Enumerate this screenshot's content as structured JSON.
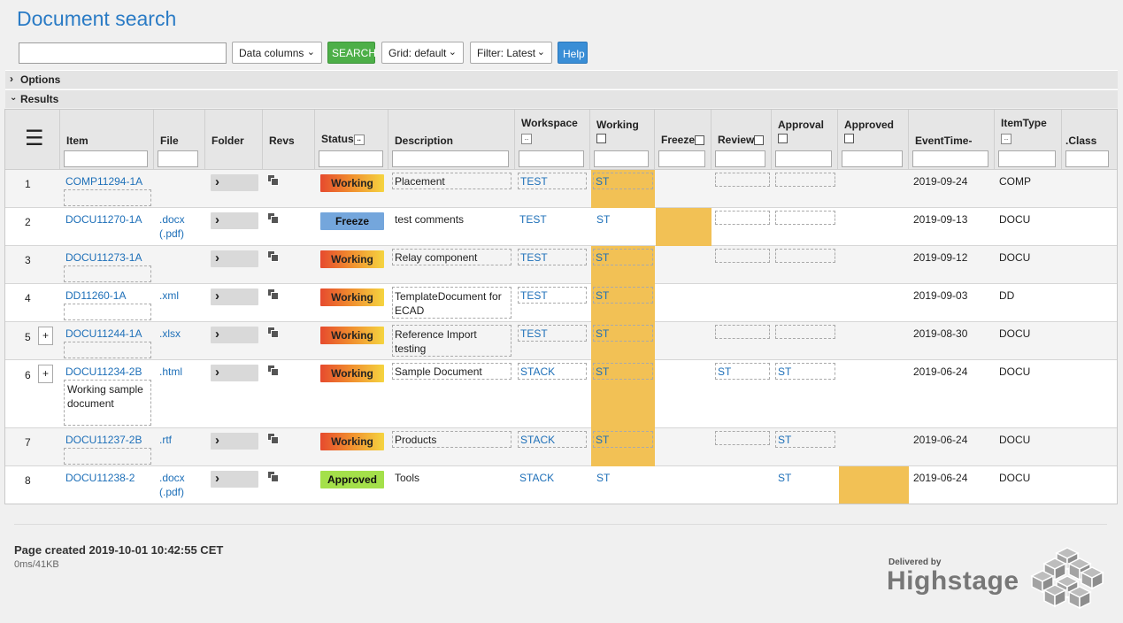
{
  "title": "Document search",
  "toolbar": {
    "search_value": "",
    "data_columns": "Data columns",
    "search_label": "SEARCH",
    "grid": "Grid: default",
    "filter": "Filter: Latest",
    "help": "Help"
  },
  "sections": {
    "options": "Options",
    "results": "Results"
  },
  "columns": {
    "item": "Item",
    "file": "File",
    "folder": "Folder",
    "revs": "Revs",
    "status": "Status",
    "description": "Description",
    "workspace": "Workspace",
    "working": "Working",
    "freeze": "Freeze",
    "review": "Review",
    "approval": "Approval",
    "approved": "Approved",
    "eventtime": "EventTime-",
    "itemtype": "ItemType",
    "class": ".Class"
  },
  "rows": [
    {
      "num": "1",
      "item": "COMP11294-1A",
      "file": "",
      "file2": "",
      "status": "Working",
      "description": "Placement",
      "workspace": "TEST",
      "working": "ST",
      "freeze": "",
      "review": "",
      "approval": "",
      "event": "2019-09-24",
      "itemtype": "COMP",
      "note": ""
    },
    {
      "num": "2",
      "item": "DOCU11270-1A",
      "file": ".docx",
      "file2": "(.pdf)",
      "status": "Freeze",
      "description": "test comments",
      "workspace": "TEST",
      "working": "ST",
      "freeze": "",
      "review": "",
      "approval": "",
      "event": "2019-09-13",
      "itemtype": "DOCU",
      "note": ""
    },
    {
      "num": "3",
      "item": "DOCU11273-1A",
      "file": "",
      "file2": "",
      "status": "Working",
      "description": "Relay component",
      "workspace": "TEST",
      "working": "ST",
      "freeze": "",
      "review": "",
      "approval": "",
      "event": "2019-09-12",
      "itemtype": "DOCU",
      "note": ""
    },
    {
      "num": "4",
      "item": "DD11260-1A",
      "file": ".xml",
      "file2": "",
      "status": "Working",
      "description": "TemplateDocument for ECAD",
      "workspace": "TEST",
      "working": "ST",
      "freeze": "",
      "review": "",
      "approval": "",
      "event": "2019-09-03",
      "itemtype": "DD",
      "note": ""
    },
    {
      "num": "5",
      "item": "DOCU11244-1A",
      "file": ".xlsx",
      "file2": "",
      "status": "Working",
      "description": "Reference Import testing",
      "workspace": "TEST",
      "working": "ST",
      "freeze": "",
      "review": "",
      "approval": "",
      "event": "2019-08-30",
      "itemtype": "DOCU",
      "note": ""
    },
    {
      "num": "6",
      "item": "DOCU11234-2B",
      "file": ".html",
      "file2": "",
      "status": "Working",
      "description": "Sample Document",
      "workspace": "STACK",
      "working": "ST",
      "freeze": "",
      "review": "ST",
      "approval": "ST",
      "event": "2019-06-24",
      "itemtype": "DOCU",
      "note": "Working sample document"
    },
    {
      "num": "7",
      "item": "DOCU11237-2B",
      "file": ".rtf",
      "file2": "",
      "status": "Working",
      "description": "Products",
      "workspace": "STACK",
      "working": "ST",
      "freeze": "",
      "review": "",
      "approval": "ST",
      "event": "2019-06-24",
      "itemtype": "DOCU",
      "note": ""
    },
    {
      "num": "8",
      "item": "DOCU11238-2",
      "file": ".docx",
      "file2": "(.pdf)",
      "status": "Approved",
      "description": "Tools",
      "workspace": "STACK",
      "working": "ST",
      "freeze": "",
      "review": "",
      "approval": "ST",
      "event": "2019-06-24",
      "itemtype": "DOCU",
      "note": ""
    }
  ],
  "footer": {
    "created": "Page created 2019-10-01 10:42:55 CET",
    "perf": "0ms/41KB",
    "delivered_by": "Delivered by",
    "brand": "Highstage"
  },
  "colors": {
    "title": "#2a7bc5",
    "highlight": "#f2c155",
    "search": "#4daf48",
    "help": "#3a8ed6"
  }
}
